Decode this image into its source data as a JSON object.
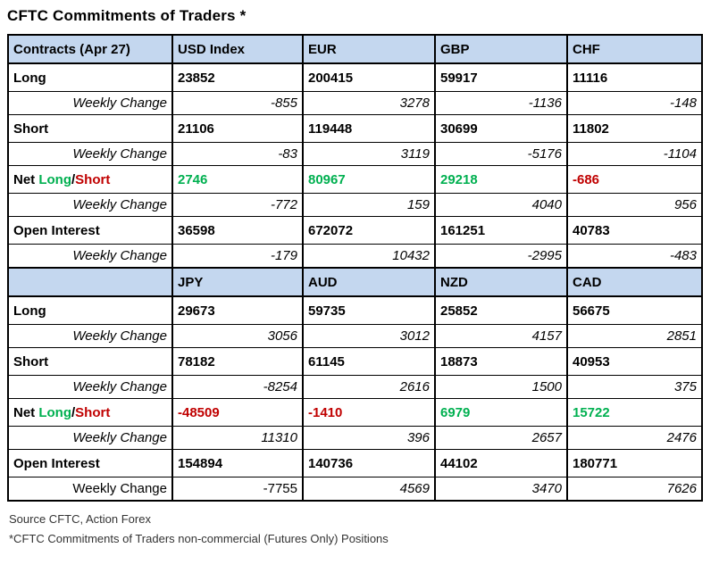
{
  "title": "CFTC Commitments of Traders *",
  "report_date": "Apr 27",
  "colors": {
    "header_bg": "#c4d7ef",
    "positive_green": "#00b050",
    "negative_red": "#c00000"
  },
  "net_label": {
    "net": "Net ",
    "long": "Long",
    "slash": "/",
    "short": "Short"
  },
  "sections": [
    {
      "header": [
        "Contracts (Apr 27)",
        "USD Index",
        "EUR",
        "GBP",
        "CHF"
      ],
      "rows": [
        {
          "label": "Long",
          "style": "main",
          "values": [
            "23852",
            "200415",
            "59917",
            "11116"
          ]
        },
        {
          "label": "Weekly Change",
          "style": "change",
          "values": [
            "-855",
            "3278",
            "-1136",
            "-148"
          ]
        },
        {
          "label": "Short",
          "style": "main",
          "values": [
            "21106",
            "119448",
            "30699",
            "11802"
          ]
        },
        {
          "label": "Weekly Change",
          "style": "change",
          "values": [
            "-83",
            "3119",
            "-5176",
            "-1104"
          ]
        },
        {
          "label": "Net Long/Short",
          "style": "net",
          "values": [
            "2746",
            "80967",
            "29218",
            "-686"
          ],
          "value_colors": [
            "green",
            "green",
            "green",
            "red"
          ]
        },
        {
          "label": "Weekly Change",
          "style": "change",
          "values": [
            "-772",
            "159",
            "4040",
            "956"
          ]
        },
        {
          "label": "Open Interest",
          "style": "main",
          "values": [
            "36598",
            "672072",
            "161251",
            "40783"
          ]
        },
        {
          "label": "Weekly Change",
          "style": "change",
          "values": [
            "-179",
            "10432",
            "-2995",
            "-483"
          ]
        }
      ]
    },
    {
      "header": [
        "",
        "JPY",
        "AUD",
        "NZD",
        "CAD"
      ],
      "rows": [
        {
          "label": "Long",
          "style": "main",
          "values": [
            "29673",
            "59735",
            "25852",
            "56675"
          ]
        },
        {
          "label": "Weekly Change",
          "style": "change",
          "values": [
            "3056",
            "3012",
            "4157",
            "2851"
          ]
        },
        {
          "label": "Short",
          "style": "main",
          "values": [
            "78182",
            "61145",
            "18873",
            "40953"
          ]
        },
        {
          "label": "Weekly Change",
          "style": "change",
          "values": [
            "-8254",
            "2616",
            "1500",
            "375"
          ]
        },
        {
          "label": "Net Long/Short",
          "style": "net",
          "values": [
            "-48509",
            "-1410",
            "6979",
            "15722"
          ],
          "value_colors": [
            "red",
            "red",
            "green",
            "green"
          ]
        },
        {
          "label": "Weekly Change",
          "style": "change",
          "values": [
            "11310",
            "396",
            "2657",
            "2476"
          ]
        },
        {
          "label": "Open Interest",
          "style": "main",
          "values": [
            "154894",
            "140736",
            "44102",
            "180771"
          ]
        },
        {
          "label": "Weekly Change",
          "style": "change",
          "values": [
            "-7755",
            "4569",
            "3470",
            "7626"
          ],
          "upright": true
        }
      ]
    }
  ],
  "footer": {
    "source": "Source CFTC, Action Forex",
    "note": "*CFTC Commitments of Traders non-commercial (Futures Only) Positions"
  },
  "chart_data": {
    "type": "table",
    "title": "CFTC Commitments of Traders *",
    "date": "Apr 27",
    "columns": [
      "USD Index",
      "EUR",
      "GBP",
      "CHF",
      "JPY",
      "AUD",
      "NZD",
      "CAD"
    ],
    "metrics": {
      "long": [
        23852,
        200415,
        59917,
        11116,
        29673,
        59735,
        25852,
        56675
      ],
      "long_weekly_change": [
        -855,
        3278,
        -1136,
        -148,
        3056,
        3012,
        4157,
        2851
      ],
      "short": [
        21106,
        119448,
        30699,
        11802,
        78182,
        61145,
        18873,
        40953
      ],
      "short_weekly_change": [
        -83,
        3119,
        -5176,
        -1104,
        -8254,
        2616,
        1500,
        375
      ],
      "net_long_short": [
        2746,
        80967,
        29218,
        -686,
        -48509,
        -1410,
        6979,
        15722
      ],
      "net_weekly_change": [
        -772,
        159,
        4040,
        956,
        11310,
        396,
        2657,
        2476
      ],
      "open_interest": [
        36598,
        672072,
        161251,
        40783,
        154894,
        140736,
        44102,
        180771
      ],
      "open_interest_weekly_change": [
        -179,
        10432,
        -2995,
        -483,
        -7755,
        4569,
        3470,
        7626
      ]
    }
  }
}
